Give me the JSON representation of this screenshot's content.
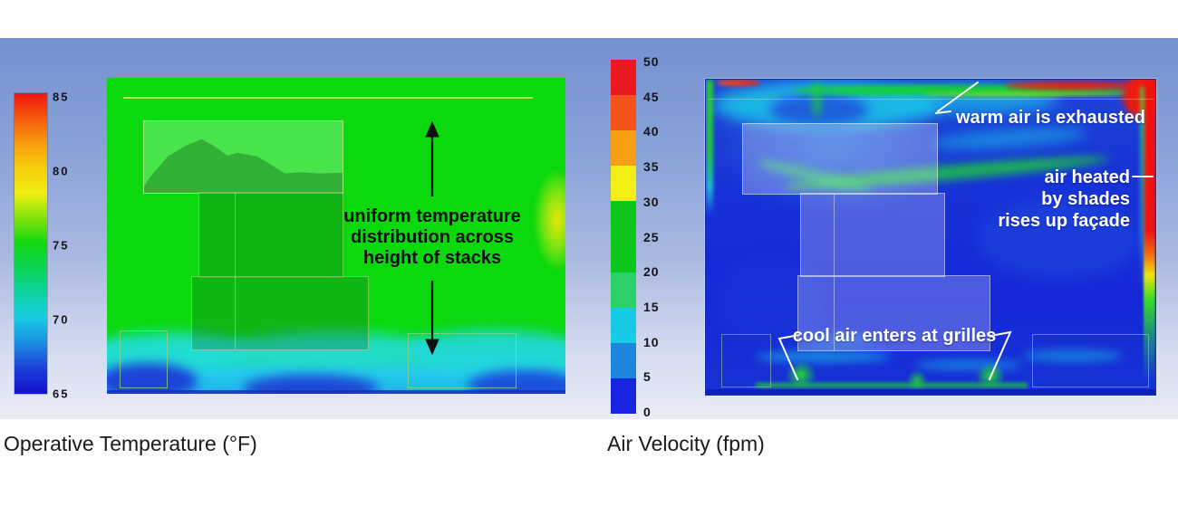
{
  "figure": {
    "left_panel": {
      "caption": "Operative Temperature (°F)",
      "colorbar": {
        "ticks": [
          "85",
          "80",
          "75",
          "70",
          "65"
        ],
        "gradient_colors": [
          "#ec1510",
          "#f55a0b",
          "#f89d0c",
          "#f6ce0e",
          "#f0ee12",
          "#7fe30a",
          "#13d814",
          "#0bd455",
          "#0ed2a4",
          "#17cbe4",
          "#1b8ce2",
          "#1a3fd8",
          "#1410cf"
        ]
      },
      "annotation": {
        "lines": [
          "uniform temperature",
          "distribution across",
          "height of stacks"
        ]
      }
    },
    "right_panel": {
      "caption": "Air Velocity (fpm)",
      "colorbar": {
        "ticks": [
          "50",
          "45",
          "40",
          "35",
          "30",
          "25",
          "20",
          "15",
          "10",
          "5",
          "0"
        ],
        "band_colors": [
          "#e9191f",
          "#f4541b",
          "#f8a014",
          "#f4ee18",
          "#0cc61b",
          "#0cc61b",
          "#2ad169",
          "#17cbe8",
          "#1e86dc",
          "#1724e2"
        ]
      },
      "annotations": {
        "exhaust": "warm air is exhausted",
        "facade_lines": [
          "air heated",
          "by shades",
          "rises up façade"
        ],
        "grilles": "cool air enters at grilles"
      }
    },
    "colors": {
      "background_top": "#7391d1",
      "background_bottom": "#e9edf6",
      "temperature_field": "#0ad90d",
      "velocity_field": "#1628d6",
      "facade_hot_stripe": "#f01110",
      "annotation_white": "#ffffff",
      "annotation_black": "#0e0e0e"
    }
  }
}
